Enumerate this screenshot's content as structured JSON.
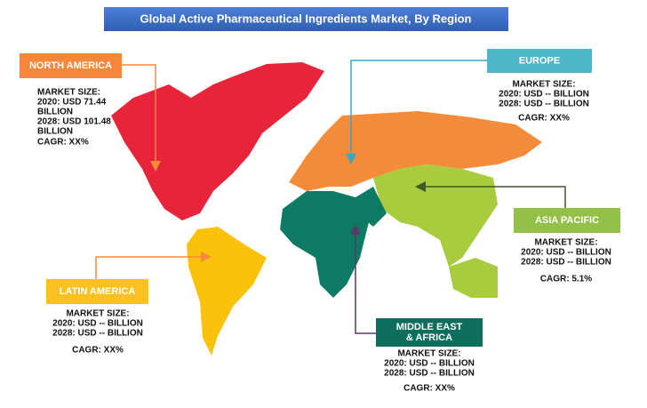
{
  "title": "Global Active Pharmaceutical Ingredients Market, By Region",
  "regions": [
    {
      "label": "NORTH  AMERICA",
      "lines": [
        "MARKET SIZE:",
        "2020: USD 71.44",
        "BILLION",
        "2028: USD 101.48",
        "BILLION"
      ],
      "cagr": "CAGR: XX%"
    },
    {
      "label": "EUROPE",
      "lines": [
        "MARKET SIZE:",
        "2020: USD -- BILLION",
        "2028: USD -- BILLION"
      ],
      "cagr": "CAGR: XX%"
    },
    {
      "label": "ASIA PACIFIC",
      "lines": [
        "MARKET SIZE:",
        "2020: USD -- BILLION",
        "2028: USD -- BILLION"
      ],
      "cagr": "CAGR: 5.1%"
    },
    {
      "label": "LATIN  AMERICA",
      "lines": [
        "MARKET SIZE:",
        "2020: USD -- BILLION",
        "2028: USD -- BILLION"
      ],
      "cagr": "CAGR: XX%"
    },
    {
      "label": [
        "MIDDLE  EAST",
        "& AFRICA"
      ],
      "lines": [
        "MARKET SIZE:",
        "2020: USD -- BILLION",
        "2028: USD -- BILLION"
      ],
      "cagr": "CAGR: XX%"
    }
  ]
}
